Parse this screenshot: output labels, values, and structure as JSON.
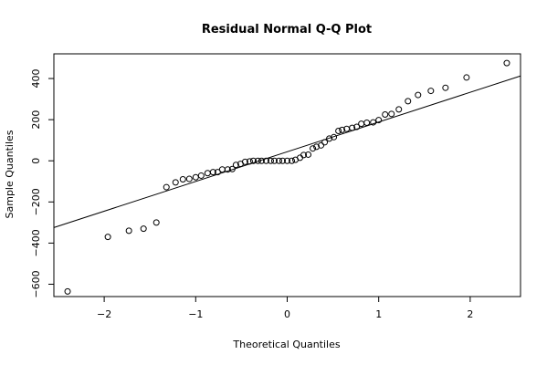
{
  "chart_data": {
    "type": "scatter",
    "title": "Residual Normal Q-Q Plot",
    "xlabel": "Theoretical Quantiles",
    "ylabel": "Sample Quantiles",
    "xlim": [
      -2.55,
      2.55
    ],
    "ylim": [
      -660,
      520
    ],
    "x_ticks": [
      -2,
      -1,
      0,
      1,
      2
    ],
    "x_tick_labels": [
      "−2",
      "−1",
      "0",
      "1",
      "2"
    ],
    "y_ticks": [
      -600,
      -400,
      -200,
      0,
      200,
      400
    ],
    "y_tick_labels": [
      "−600",
      "−400",
      "−200",
      "0",
      "200",
      "400"
    ],
    "grid": false,
    "legend": "none",
    "reference_line": {
      "slope": 144.5,
      "intercept": 44
    },
    "points": [
      {
        "x": -2.4,
        "y": -635
      },
      {
        "x": -1.96,
        "y": -370
      },
      {
        "x": -1.73,
        "y": -340
      },
      {
        "x": -1.57,
        "y": -330
      },
      {
        "x": -1.43,
        "y": -300
      },
      {
        "x": -1.32,
        "y": -128
      },
      {
        "x": -1.22,
        "y": -105
      },
      {
        "x": -1.14,
        "y": -90
      },
      {
        "x": -1.07,
        "y": -88
      },
      {
        "x": -1.0,
        "y": -80
      },
      {
        "x": -0.94,
        "y": -72
      },
      {
        "x": -0.87,
        "y": -60
      },
      {
        "x": -0.81,
        "y": -55
      },
      {
        "x": -0.76,
        "y": -55
      },
      {
        "x": -0.71,
        "y": -42
      },
      {
        "x": -0.65,
        "y": -42
      },
      {
        "x": -0.6,
        "y": -40
      },
      {
        "x": -0.56,
        "y": -20
      },
      {
        "x": -0.51,
        "y": -15
      },
      {
        "x": -0.46,
        "y": -5
      },
      {
        "x": -0.41,
        "y": -3
      },
      {
        "x": -0.37,
        "y": 0
      },
      {
        "x": -0.32,
        "y": 0
      },
      {
        "x": -0.28,
        "y": 0
      },
      {
        "x": -0.23,
        "y": 0
      },
      {
        "x": -0.18,
        "y": 0
      },
      {
        "x": -0.14,
        "y": 0
      },
      {
        "x": -0.09,
        "y": 0
      },
      {
        "x": -0.05,
        "y": 0
      },
      {
        "x": 0.0,
        "y": 0
      },
      {
        "x": 0.05,
        "y": 0
      },
      {
        "x": 0.09,
        "y": 5
      },
      {
        "x": 0.14,
        "y": 15
      },
      {
        "x": 0.18,
        "y": 28
      },
      {
        "x": 0.23,
        "y": 30
      },
      {
        "x": 0.28,
        "y": 60
      },
      {
        "x": 0.32,
        "y": 68
      },
      {
        "x": 0.37,
        "y": 75
      },
      {
        "x": 0.41,
        "y": 90
      },
      {
        "x": 0.46,
        "y": 108
      },
      {
        "x": 0.51,
        "y": 115
      },
      {
        "x": 0.56,
        "y": 145
      },
      {
        "x": 0.6,
        "y": 150
      },
      {
        "x": 0.65,
        "y": 155
      },
      {
        "x": 0.71,
        "y": 160
      },
      {
        "x": 0.76,
        "y": 165
      },
      {
        "x": 0.81,
        "y": 180
      },
      {
        "x": 0.87,
        "y": 185
      },
      {
        "x": 0.94,
        "y": 187
      },
      {
        "x": 1.0,
        "y": 198
      },
      {
        "x": 1.07,
        "y": 225
      },
      {
        "x": 1.14,
        "y": 228
      },
      {
        "x": 1.22,
        "y": 250
      },
      {
        "x": 1.32,
        "y": 290
      },
      {
        "x": 1.43,
        "y": 320
      },
      {
        "x": 1.57,
        "y": 340
      },
      {
        "x": 1.73,
        "y": 355
      },
      {
        "x": 1.96,
        "y": 405
      },
      {
        "x": 2.4,
        "y": 475
      }
    ]
  }
}
